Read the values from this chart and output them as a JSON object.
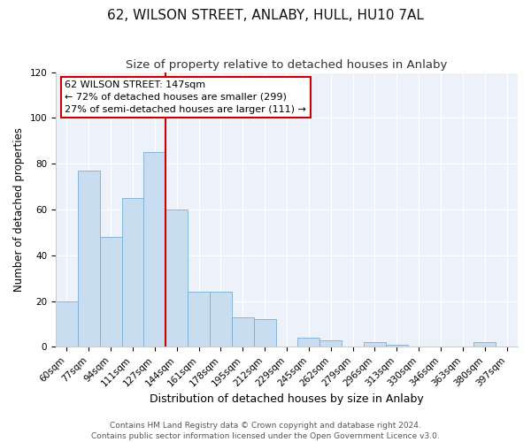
{
  "title": "62, WILSON STREET, ANLABY, HULL, HU10 7AL",
  "subtitle": "Size of property relative to detached houses in Anlaby",
  "xlabel": "Distribution of detached houses by size in Anlaby",
  "ylabel": "Number of detached properties",
  "bar_labels": [
    "60sqm",
    "77sqm",
    "94sqm",
    "111sqm",
    "127sqm",
    "144sqm",
    "161sqm",
    "178sqm",
    "195sqm",
    "212sqm",
    "229sqm",
    "245sqm",
    "262sqm",
    "279sqm",
    "296sqm",
    "313sqm",
    "330sqm",
    "346sqm",
    "363sqm",
    "380sqm",
    "397sqm"
  ],
  "bar_values": [
    20,
    77,
    48,
    65,
    85,
    60,
    24,
    24,
    13,
    12,
    0,
    4,
    3,
    0,
    2,
    1,
    0,
    0,
    0,
    2,
    0
  ],
  "bar_color": "#c9ddf0",
  "bar_edge_color": "#7aadd4",
  "vline_color": "#cc0000",
  "vline_x_index": 4.5,
  "ylim": [
    0,
    120
  ],
  "annotation_title": "62 WILSON STREET: 147sqm",
  "annotation_line1": "← 72% of detached houses are smaller (299)",
  "annotation_line2": "27% of semi-detached houses are larger (111) →",
  "annotation_box_color": "#ffffff",
  "annotation_box_edge": "#cc0000",
  "footer1": "Contains HM Land Registry data © Crown copyright and database right 2024.",
  "footer2": "Contains public sector information licensed under the Open Government Licence v3.0.",
  "title_fontsize": 11,
  "subtitle_fontsize": 9.5,
  "xlabel_fontsize": 9,
  "ylabel_fontsize": 8.5,
  "tick_fontsize": 7.5,
  "annotation_fontsize": 8,
  "footer_fontsize": 6.5
}
